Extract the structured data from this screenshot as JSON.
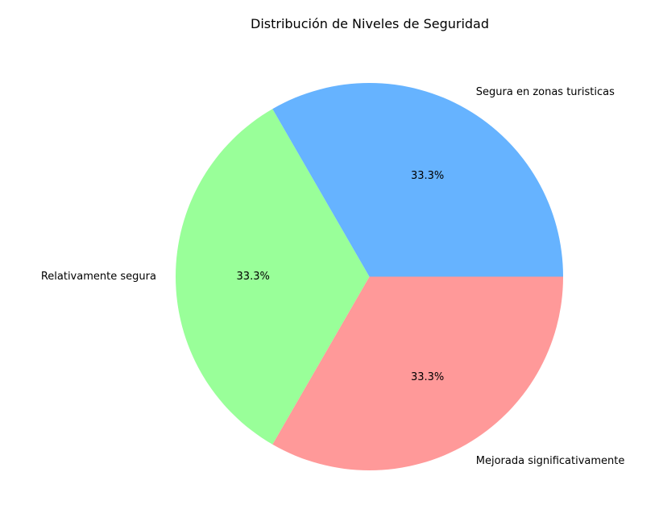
{
  "chart_data": {
    "type": "pie",
    "title": "Distribución de Niveles de Seguridad",
    "series": [
      {
        "name": "",
        "values": [
          33.3,
          33.3,
          33.3
        ]
      }
    ],
    "categories": [
      "Mejorada significativamente",
      "Relativamente segura",
      "Segura en zonas turisticas"
    ],
    "percent_labels": [
      "33.3%",
      "33.3%",
      "33.3%"
    ],
    "colors": [
      "#ff9999",
      "#99ff99",
      "#66b3ff"
    ],
    "start_angle_deg": 0,
    "direction": "clockwise"
  }
}
